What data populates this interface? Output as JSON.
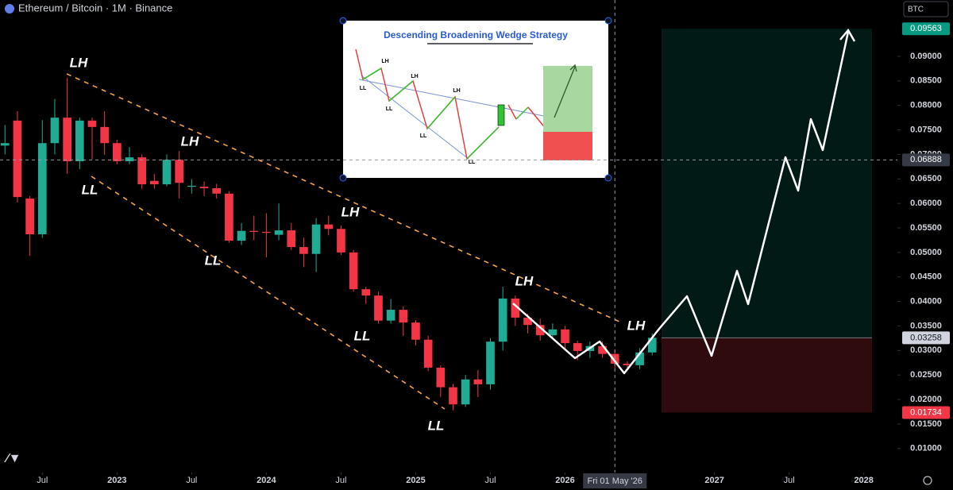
{
  "header": {
    "symbol": "Ethereum / Bitcoin · 1M · Binance",
    "currency": "BTC"
  },
  "chart_data": {
    "type": "candlestick",
    "categories": [
      null,
      null,
      null,
      null,
      null,
      null,
      null,
      null,
      null,
      null,
      null,
      null,
      null,
      null,
      null,
      null,
      null,
      null,
      null,
      null,
      null,
      null,
      null,
      null,
      null,
      null,
      null,
      null,
      null,
      null,
      null,
      null,
      null,
      null,
      null,
      null,
      null,
      null,
      null,
      null,
      null,
      null,
      null,
      null,
      null,
      null,
      null,
      null,
      null,
      null,
      null,
      null,
      null
    ],
    "open": [
      0.0718,
      0.0769,
      0.061,
      0.0537,
      0.0723,
      0.0775,
      0.0686,
      0.0769,
      0.0756,
      0.0723,
      0.0686,
      0.0694,
      0.0646,
      0.0639,
      0.0689,
      0.0634,
      0.0634,
      0.0631,
      0.062,
      0.0524,
      0.0544,
      0.0542,
      0.0536,
      0.0545,
      0.0511,
      0.0497,
      0.0557,
      0.0548,
      0.05,
      0.0425,
      0.0412,
      0.0361,
      0.0383,
      0.0357,
      0.0322,
      0.0265,
      0.0225,
      0.019,
      0.0241,
      0.0231,
      0.0318,
      0.0406,
      0.0367,
      0.0352,
      0.0331,
      0.0343,
      0.0315,
      0.0299,
      0.0309,
      0.0293,
      0.0273,
      0.027,
      0.0296
    ],
    "high": [
      0.076,
      0.0788,
      0.0615,
      0.077,
      0.0813,
      0.0856,
      0.0775,
      0.0775,
      0.0788,
      0.073,
      0.0715,
      0.07,
      0.066,
      0.07,
      0.0707,
      0.065,
      0.0645,
      0.064,
      0.0625,
      0.056,
      0.0575,
      0.058,
      0.06,
      0.056,
      0.053,
      0.057,
      0.0575,
      0.0555,
      0.0505,
      0.043,
      0.042,
      0.0405,
      0.039,
      0.0362,
      0.033,
      0.027,
      0.0232,
      0.025,
      0.026,
      0.0325,
      0.043,
      0.0412,
      0.0375,
      0.0365,
      0.0355,
      0.035,
      0.032,
      0.0318,
      0.0318,
      0.03,
      0.0278,
      0.0305,
      0.0335
    ],
    "low": [
      0.07,
      0.0602,
      0.0493,
      0.053,
      0.07,
      0.066,
      0.067,
      0.069,
      0.0699,
      0.068,
      0.068,
      0.063,
      0.063,
      0.0635,
      0.061,
      0.062,
      0.0615,
      0.061,
      0.052,
      0.0515,
      0.0525,
      0.049,
      0.0525,
      0.0505,
      0.047,
      0.046,
      0.0535,
      0.0495,
      0.042,
      0.0395,
      0.0355,
      0.0355,
      0.033,
      0.031,
      0.0258,
      0.0205,
      0.0178,
      0.0185,
      0.0205,
      0.022,
      0.03,
      0.035,
      0.0335,
      0.032,
      0.0325,
      0.03,
      0.028,
      0.0285,
      0.0285,
      0.026,
      0.0265,
      0.0262,
      0.029
    ],
    "close": [
      0.0723,
      0.0613,
      0.0537,
      0.0723,
      0.0775,
      0.0686,
      0.0769,
      0.0756,
      0.0723,
      0.0686,
      0.0694,
      0.0639,
      0.0639,
      0.0689,
      0.0642,
      0.0636,
      0.0631,
      0.062,
      0.0524,
      0.0544,
      0.0542,
      0.054,
      0.0545,
      0.0511,
      0.0497,
      0.0557,
      0.0548,
      0.05,
      0.0425,
      0.0412,
      0.0361,
      0.0383,
      0.0357,
      0.0322,
      0.0265,
      0.0225,
      0.019,
      0.0241,
      0.0231,
      0.0318,
      0.0406,
      0.0367,
      0.0352,
      0.0331,
      0.0343,
      0.0315,
      0.0299,
      0.0309,
      0.0293,
      0.0273,
      0.027,
      0.0296,
      0.0326
    ],
    "up_color": "#22ab94",
    "down_color": "#f23645",
    "ylim": [
      0.0051,
      0.1015
    ],
    "yticks": [
      {
        "value": 0.01,
        "label": "0.01000"
      },
      {
        "value": 0.015,
        "label": "0.01500"
      },
      {
        "value": 0.02,
        "label": "0.02000"
      },
      {
        "value": 0.025,
        "label": "0.02500"
      },
      {
        "value": 0.03,
        "label": "0.03000"
      },
      {
        "value": 0.035,
        "label": "0.03500"
      },
      {
        "value": 0.04,
        "label": "0.04000"
      },
      {
        "value": 0.045,
        "label": "0.04500"
      },
      {
        "value": 0.05,
        "label": "0.05000"
      },
      {
        "value": 0.055,
        "label": "0.05500"
      },
      {
        "value": 0.06,
        "label": "0.06000"
      },
      {
        "value": 0.065,
        "label": "0.06500"
      },
      {
        "value": 0.07,
        "label": "0.07000"
      },
      {
        "value": 0.075,
        "label": "0.07500"
      },
      {
        "value": 0.08,
        "label": "0.08000"
      },
      {
        "value": 0.085,
        "label": "0.08500"
      },
      {
        "value": 0.09,
        "label": "0.09000"
      }
    ],
    "xlim": [
      -0.4,
      71.7
    ],
    "xticks": [
      {
        "value": 3,
        "label": "Jul"
      },
      {
        "value": 9,
        "label": "2023"
      },
      {
        "value": 15,
        "label": "Jul"
      },
      {
        "value": 21,
        "label": "2024"
      },
      {
        "value": 27,
        "label": "Jul"
      },
      {
        "value": 33,
        "label": "2025"
      },
      {
        "value": 39,
        "label": "Jul"
      },
      {
        "value": 45,
        "label": "2026"
      },
      {
        "value": 57,
        "label": "2027"
      },
      {
        "value": 63,
        "label": "Jul"
      },
      {
        "value": 69,
        "label": "2028"
      }
    ],
    "crosshair": {
      "x": 49,
      "x_label": "Fri 01 May '26",
      "y": 0.06888,
      "y_label": "0.06888"
    },
    "target": {
      "take_profit": 0.09563,
      "take_profit_label": "0.09563",
      "entry": 0.03258,
      "entry_label": "0.03258",
      "stop": 0.01734,
      "stop_label": "0.01734"
    },
    "annotations": [
      "LH",
      "LL",
      "LH",
      "LL",
      "LH",
      "LL",
      "LL",
      "LH",
      "LH"
    ]
  },
  "inset": {
    "title": "Descending Broadening Wedge Strategy",
    "labels": [
      "LH",
      "LH",
      "LH",
      "LL",
      "LL",
      "LL",
      "LL"
    ]
  }
}
